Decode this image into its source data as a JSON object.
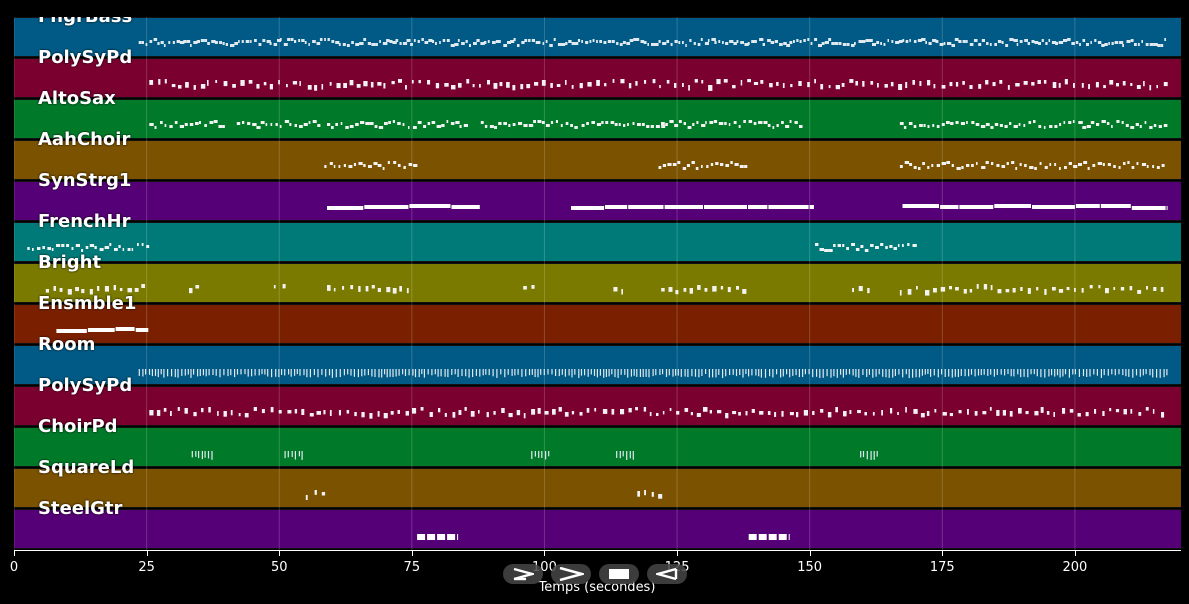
{
  "chart_data": {
    "type": "piano-roll",
    "xlabel": "Temps (secondes)",
    "xlim": [
      0,
      220
    ],
    "x_ticks": [
      0,
      25,
      50,
      75,
      100,
      125,
      150,
      175,
      200
    ],
    "x_tick_labels": [
      "0",
      "25",
      "50",
      "75",
      "100",
      "125",
      "150",
      "175",
      "200"
    ],
    "grid": true,
    "tracks": [
      {
        "name": "FngrBass",
        "color": "#005a85",
        "segments": [
          [
            23.5,
            217.5
          ]
        ],
        "style": "dense-small"
      },
      {
        "name": "PolySyPd",
        "color": "#7a0030",
        "segments": [
          [
            25.5,
            217
          ]
        ],
        "style": "sparse-small"
      },
      {
        "name": "AltoSax",
        "color": "#007a28",
        "segments": [
          [
            25.5,
            40
          ],
          [
            42,
            58
          ],
          [
            59,
            85
          ],
          [
            88,
            106
          ],
          [
            107,
            122
          ],
          [
            122,
            148
          ],
          [
            167,
            217
          ]
        ],
        "style": "phrase"
      },
      {
        "name": "AahChoir",
        "color": "#7a5200",
        "segments": [
          [
            58.5,
            75.5
          ],
          [
            121.5,
            138.5
          ],
          [
            167,
            217
          ]
        ],
        "style": "phrase"
      },
      {
        "name": "SynStrg1",
        "color": "#560078",
        "segments": [
          [
            59,
            88
          ],
          [
            105,
            151
          ],
          [
            167.5,
            217.5
          ]
        ],
        "style": "long"
      },
      {
        "name": "FrenchHr",
        "color": "#007a78",
        "segments": [
          [
            2.5,
            25.5
          ],
          [
            151,
            170
          ]
        ],
        "style": "phrase"
      },
      {
        "name": "Bright",
        "color": "#7a7a00",
        "segments": [
          [
            6,
            25
          ],
          [
            33,
            35
          ],
          [
            49,
            52
          ],
          [
            59,
            75.5
          ],
          [
            96,
            98
          ],
          [
            113,
            115
          ],
          [
            122,
            138.5
          ],
          [
            158,
            161
          ],
          [
            167,
            217
          ]
        ],
        "style": "sparse-small"
      },
      {
        "name": "Ensmble1",
        "color": "#7a2000",
        "segments": [
          [
            8,
            25.5
          ]
        ],
        "style": "long"
      },
      {
        "name": "Room",
        "color": "#005a85",
        "segments": [
          [
            23.5,
            217.5
          ]
        ],
        "style": "ticks"
      },
      {
        "name": "PolySyPd",
        "color": "#7a0030",
        "segments": [
          [
            25.5,
            217
          ]
        ],
        "style": "sparse-small"
      },
      {
        "name": "ChoirPd",
        "color": "#007a28",
        "segments": [
          [
            33.5,
            37.5
          ],
          [
            51,
            54.5
          ],
          [
            97.5,
            101
          ],
          [
            113.5,
            117
          ],
          [
            159.5,
            163
          ]
        ],
        "style": "ticks"
      },
      {
        "name": "SquareLd",
        "color": "#7a5200",
        "segments": [
          [
            55,
            59
          ],
          [
            117.5,
            121.5
          ]
        ],
        "style": "sparse-small"
      },
      {
        "name": "SteelGtr",
        "color": "#560078",
        "segments": [
          [
            76,
            84
          ],
          [
            138.5,
            146.5
          ]
        ],
        "style": "blocks"
      }
    ]
  },
  "controls": {
    "play_forward_icon": "play-forward-icon",
    "fast_forward_icon": "fast-forward-icon",
    "stop_icon": "stop-icon",
    "rewind_icon": "rewind-icon"
  }
}
